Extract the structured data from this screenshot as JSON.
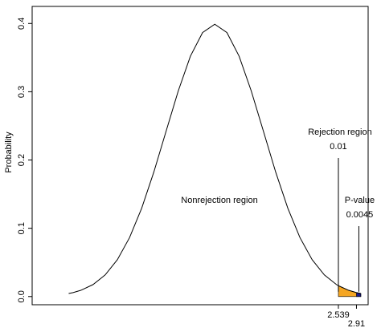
{
  "chart_data": {
    "type": "density",
    "y_label": "Probability",
    "annotation": "Nonrejection region",
    "x": [
      -3.0,
      -2.91,
      -2.75,
      -2.5,
      -2.25,
      -2.0,
      -1.75,
      -1.5,
      -1.25,
      -1.0,
      -0.75,
      -0.5,
      -0.25,
      0,
      0.25,
      0.5,
      0.75,
      1.0,
      1.25,
      1.5,
      1.75,
      2.0,
      2.25,
      2.5,
      2.539,
      2.75,
      2.91,
      3.0
    ],
    "values": [
      0.0044,
      0.0058,
      0.0091,
      0.0175,
      0.0317,
      0.054,
      0.0863,
      0.1295,
      0.1826,
      0.242,
      0.3011,
      0.3521,
      0.3867,
      0.3989,
      0.3867,
      0.3521,
      0.3011,
      0.242,
      0.1826,
      0.1295,
      0.0863,
      0.054,
      0.0317,
      0.0175,
      0.0159,
      0.0091,
      0.0058,
      0.0044
    ],
    "color": "#000000",
    "regions": [
      {
        "label": "Rejection region",
        "from": 2.539,
        "value": 0.01,
        "color": "#f5a623"
      },
      {
        "label": "P-value",
        "from": 2.91,
        "value": 0.0045,
        "color": "#1a1a8c"
      }
    ],
    "xlim": [
      -3.75,
      3.15
    ],
    "xticks": [
      2.539,
      2.91
    ],
    "ylim": [
      -0.012,
      0.425
    ],
    "yticks": [
      {
        "value": 0,
        "label": "0.0"
      },
      0.1,
      0.2,
      0.3,
      0.4
    ]
  }
}
